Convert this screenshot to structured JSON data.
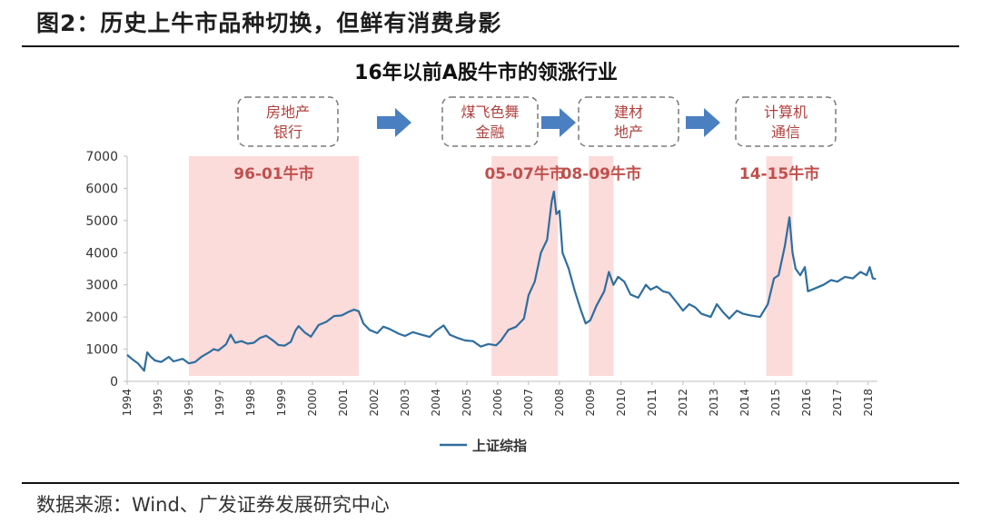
{
  "figure_title": "图2：历史上牛市品种切换，但鲜有消费身影",
  "source": "数据来源：Wind、广发证券发展研究中心",
  "chart_data": {
    "type": "line",
    "title": "16年以前A股牛市的领涨行业",
    "xlabel": "",
    "ylabel": "",
    "ylim": [
      0,
      7000
    ],
    "xlim": [
      1994,
      2018.3
    ],
    "yticks": [
      0,
      1000,
      2000,
      3000,
      4000,
      5000,
      6000,
      7000
    ],
    "xticks": [
      "1994",
      "1995",
      "1996",
      "1997",
      "1998",
      "1999",
      "2000",
      "2001",
      "2002",
      "2003",
      "2004",
      "2005",
      "2006",
      "2007",
      "2008",
      "2009",
      "2010",
      "2011",
      "2012",
      "2013",
      "2014",
      "2015",
      "2016",
      "2017",
      "2018"
    ],
    "legend": "bottom-center",
    "grid": false,
    "colors": {
      "line": "#2e6e9e",
      "band": "#fbd5d5",
      "band_label": "#c0504d",
      "arrow": "#4a7fc1",
      "box_border": "#7a7a7a",
      "box_text": "#b0413e"
    },
    "series": [
      {
        "name": "上证综指",
        "points": [
          [
            1994.0,
            820
          ],
          [
            1994.15,
            700
          ],
          [
            1994.35,
            560
          ],
          [
            1994.55,
            330
          ],
          [
            1994.65,
            900
          ],
          [
            1994.75,
            780
          ],
          [
            1994.9,
            650
          ],
          [
            1995.1,
            600
          ],
          [
            1995.35,
            760
          ],
          [
            1995.5,
            620
          ],
          [
            1995.8,
            700
          ],
          [
            1996.0,
            560
          ],
          [
            1996.2,
            600
          ],
          [
            1996.4,
            760
          ],
          [
            1996.65,
            900
          ],
          [
            1996.8,
            1000
          ],
          [
            1996.95,
            960
          ],
          [
            1997.2,
            1150
          ],
          [
            1997.35,
            1450
          ],
          [
            1997.5,
            1200
          ],
          [
            1997.7,
            1250
          ],
          [
            1997.9,
            1170
          ],
          [
            1998.1,
            1200
          ],
          [
            1998.3,
            1350
          ],
          [
            1998.5,
            1420
          ],
          [
            1998.75,
            1250
          ],
          [
            1998.9,
            1130
          ],
          [
            1999.1,
            1110
          ],
          [
            1999.3,
            1230
          ],
          [
            1999.45,
            1580
          ],
          [
            1999.55,
            1720
          ],
          [
            1999.75,
            1520
          ],
          [
            1999.95,
            1390
          ],
          [
            2000.2,
            1750
          ],
          [
            2000.45,
            1850
          ],
          [
            2000.7,
            2030
          ],
          [
            2000.95,
            2050
          ],
          [
            2001.15,
            2150
          ],
          [
            2001.35,
            2230
          ],
          [
            2001.5,
            2180
          ],
          [
            2001.65,
            1800
          ],
          [
            2001.85,
            1600
          ],
          [
            2002.1,
            1500
          ],
          [
            2002.3,
            1700
          ],
          [
            2002.5,
            1630
          ],
          [
            2002.8,
            1480
          ],
          [
            2003.0,
            1410
          ],
          [
            2003.25,
            1530
          ],
          [
            2003.5,
            1460
          ],
          [
            2003.8,
            1380
          ],
          [
            2004.0,
            1570
          ],
          [
            2004.25,
            1740
          ],
          [
            2004.45,
            1450
          ],
          [
            2004.7,
            1350
          ],
          [
            2004.95,
            1270
          ],
          [
            2005.2,
            1250
          ],
          [
            2005.45,
            1080
          ],
          [
            2005.7,
            1160
          ],
          [
            2005.95,
            1120
          ],
          [
            2006.1,
            1260
          ],
          [
            2006.35,
            1600
          ],
          [
            2006.6,
            1700
          ],
          [
            2006.85,
            1950
          ],
          [
            2007.0,
            2680
          ],
          [
            2007.2,
            3100
          ],
          [
            2007.4,
            4000
          ],
          [
            2007.6,
            4400
          ],
          [
            2007.75,
            5600
          ],
          [
            2007.82,
            5900
          ],
          [
            2007.9,
            5200
          ],
          [
            2008.0,
            5300
          ],
          [
            2008.1,
            4000
          ],
          [
            2008.3,
            3500
          ],
          [
            2008.5,
            2800
          ],
          [
            2008.7,
            2200
          ],
          [
            2008.85,
            1800
          ],
          [
            2009.0,
            1900
          ],
          [
            2009.2,
            2350
          ],
          [
            2009.45,
            2800
          ],
          [
            2009.6,
            3400
          ],
          [
            2009.75,
            3000
          ],
          [
            2009.9,
            3250
          ],
          [
            2010.1,
            3100
          ],
          [
            2010.3,
            2700
          ],
          [
            2010.55,
            2600
          ],
          [
            2010.8,
            3000
          ],
          [
            2010.95,
            2850
          ],
          [
            2011.15,
            2950
          ],
          [
            2011.35,
            2800
          ],
          [
            2011.55,
            2750
          ],
          [
            2011.8,
            2450
          ],
          [
            2012.0,
            2200
          ],
          [
            2012.2,
            2400
          ],
          [
            2012.4,
            2300
          ],
          [
            2012.6,
            2100
          ],
          [
            2012.9,
            2000
          ],
          [
            2013.1,
            2400
          ],
          [
            2013.3,
            2150
          ],
          [
            2013.5,
            1950
          ],
          [
            2013.75,
            2200
          ],
          [
            2013.95,
            2100
          ],
          [
            2014.2,
            2050
          ],
          [
            2014.5,
            2000
          ],
          [
            2014.75,
            2400
          ],
          [
            2014.95,
            3200
          ],
          [
            2015.1,
            3300
          ],
          [
            2015.3,
            4200
          ],
          [
            2015.45,
            5100
          ],
          [
            2015.55,
            4000
          ],
          [
            2015.65,
            3500
          ],
          [
            2015.8,
            3300
          ],
          [
            2015.95,
            3550
          ],
          [
            2016.05,
            2800
          ],
          [
            2016.3,
            2900
          ],
          [
            2016.55,
            3000
          ],
          [
            2016.8,
            3150
          ],
          [
            2017.0,
            3100
          ],
          [
            2017.25,
            3250
          ],
          [
            2017.5,
            3200
          ],
          [
            2017.75,
            3400
          ],
          [
            2017.95,
            3300
          ],
          [
            2018.05,
            3550
          ],
          [
            2018.15,
            3200
          ],
          [
            2018.25,
            3180
          ]
        ]
      }
    ],
    "bands": [
      {
        "label": "96-01牛市",
        "x0": 1996.0,
        "x1": 2001.5
      },
      {
        "label": "05-07牛市",
        "x0": 2005.8,
        "x1": 2007.95
      },
      {
        "label": "08-09牛市",
        "x0": 2008.95,
        "x1": 2009.75
      },
      {
        "label": "14-15牛市",
        "x0": 2014.7,
        "x1": 2015.55
      }
    ],
    "annotations": [
      {
        "lines": [
          "房地产",
          "银行"
        ]
      },
      {
        "lines": [
          "煤飞色舞",
          "金融"
        ]
      },
      {
        "lines": [
          "建材",
          "地产"
        ]
      },
      {
        "lines": [
          "计算机",
          "通信"
        ]
      }
    ]
  }
}
